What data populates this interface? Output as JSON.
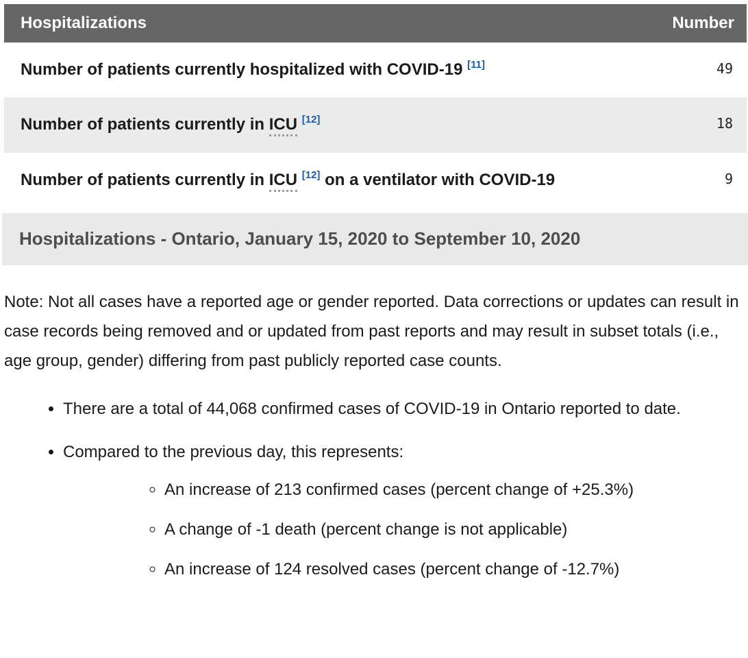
{
  "colors": {
    "table_header_bg": "#666666",
    "table_header_text": "#fdfdfd",
    "stripe_bg": "#ebebeb",
    "section_band_bg": "#e9e9e9",
    "section_band_text": "#4d4d4d",
    "footnote_link_blue": "#1a5dab",
    "body_text": "#1b1b1b"
  },
  "table": {
    "columns": {
      "label": "Hospitalizations",
      "value": "Number"
    },
    "rows": [
      {
        "label_before": "Number of patients currently hospitalized with COVID-19",
        "ref": "[11]",
        "value": "49"
      },
      {
        "label_before": "Number of patients currently in",
        "abbr": "ICU",
        "ref": "[12]",
        "label_after": "",
        "value": "18"
      },
      {
        "label_before": "Number of patients currently in",
        "abbr": "ICU",
        "ref": "[12]",
        "label_after": "on a ventilator with COVID-19",
        "value": "9"
      }
    ]
  },
  "section_header": "Hospitalizations - Ontario, January 15, 2020 to September 10, 2020",
  "note": "Note: Not all cases have a reported age or gender reported. Data corrections or updates can result in case records being removed and or updated from past reports and may result in subset totals (i.e., age group, gender) differing from past publicly reported case counts.",
  "bullets": {
    "total_cases": "There are a total of 44,068 confirmed cases of COVID-19 in Ontario reported to date.",
    "compared_intro": "Compared to the previous day, this represents:",
    "sub_confirmed": "An increase of 213 confirmed cases (percent change of +25.3%)",
    "sub_deaths": "A change of -1 death (percent change is not applicable)",
    "sub_resolved": "An increase of 124 resolved cases (percent change of -12.7%)"
  }
}
